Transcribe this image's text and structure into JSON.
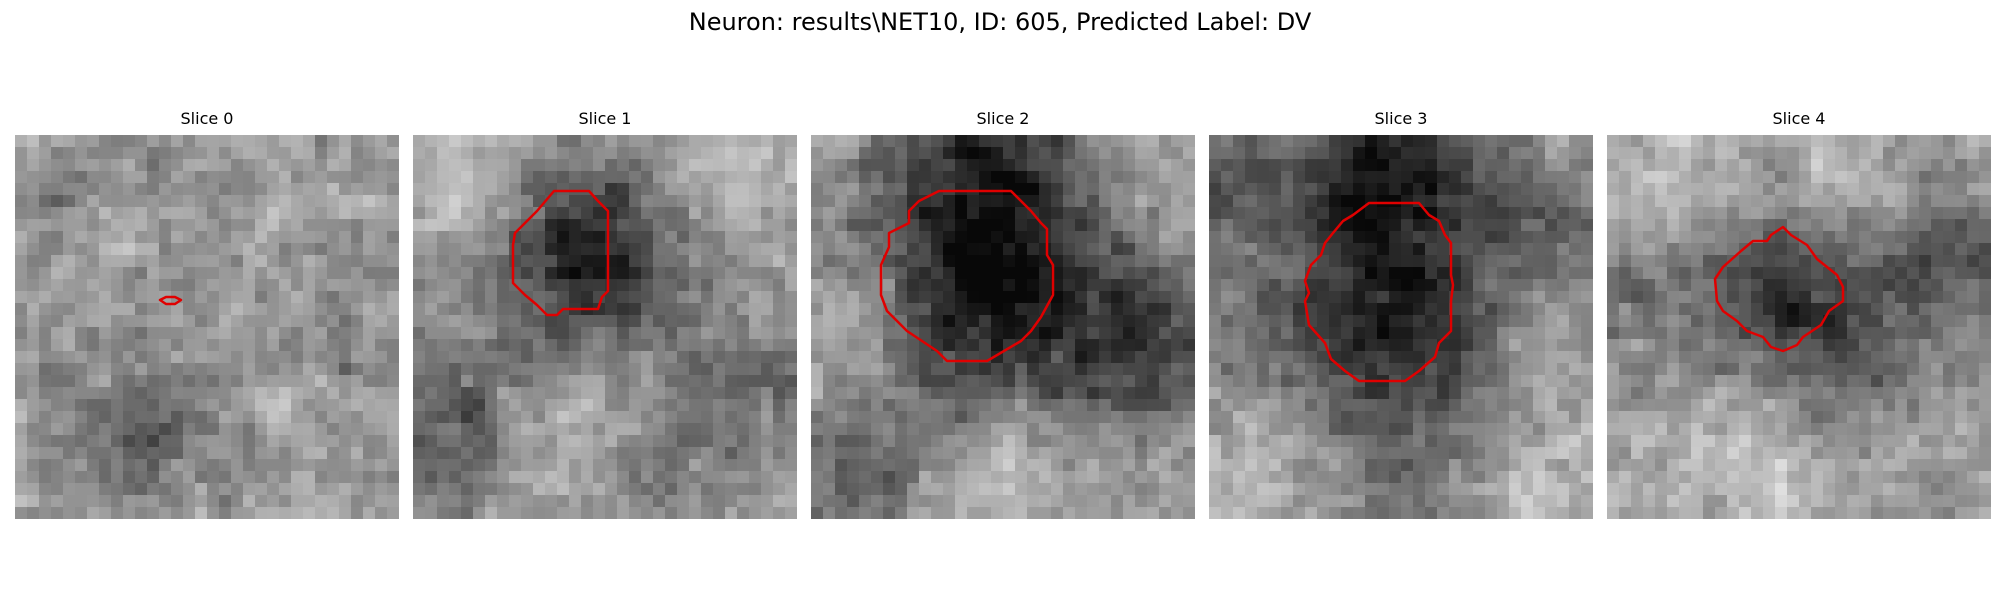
{
  "figure": {
    "title": "Neuron: results\\NET10, ID: 605, Predicted Label: DV"
  },
  "panels": [
    {
      "title": "Slice 0"
    },
    {
      "title": "Slice 1"
    },
    {
      "title": "Slice 2"
    },
    {
      "title": "Slice 3"
    },
    {
      "title": "Slice 4"
    }
  ],
  "colors": {
    "contour": "#e00000",
    "background": "#ffffff"
  }
}
